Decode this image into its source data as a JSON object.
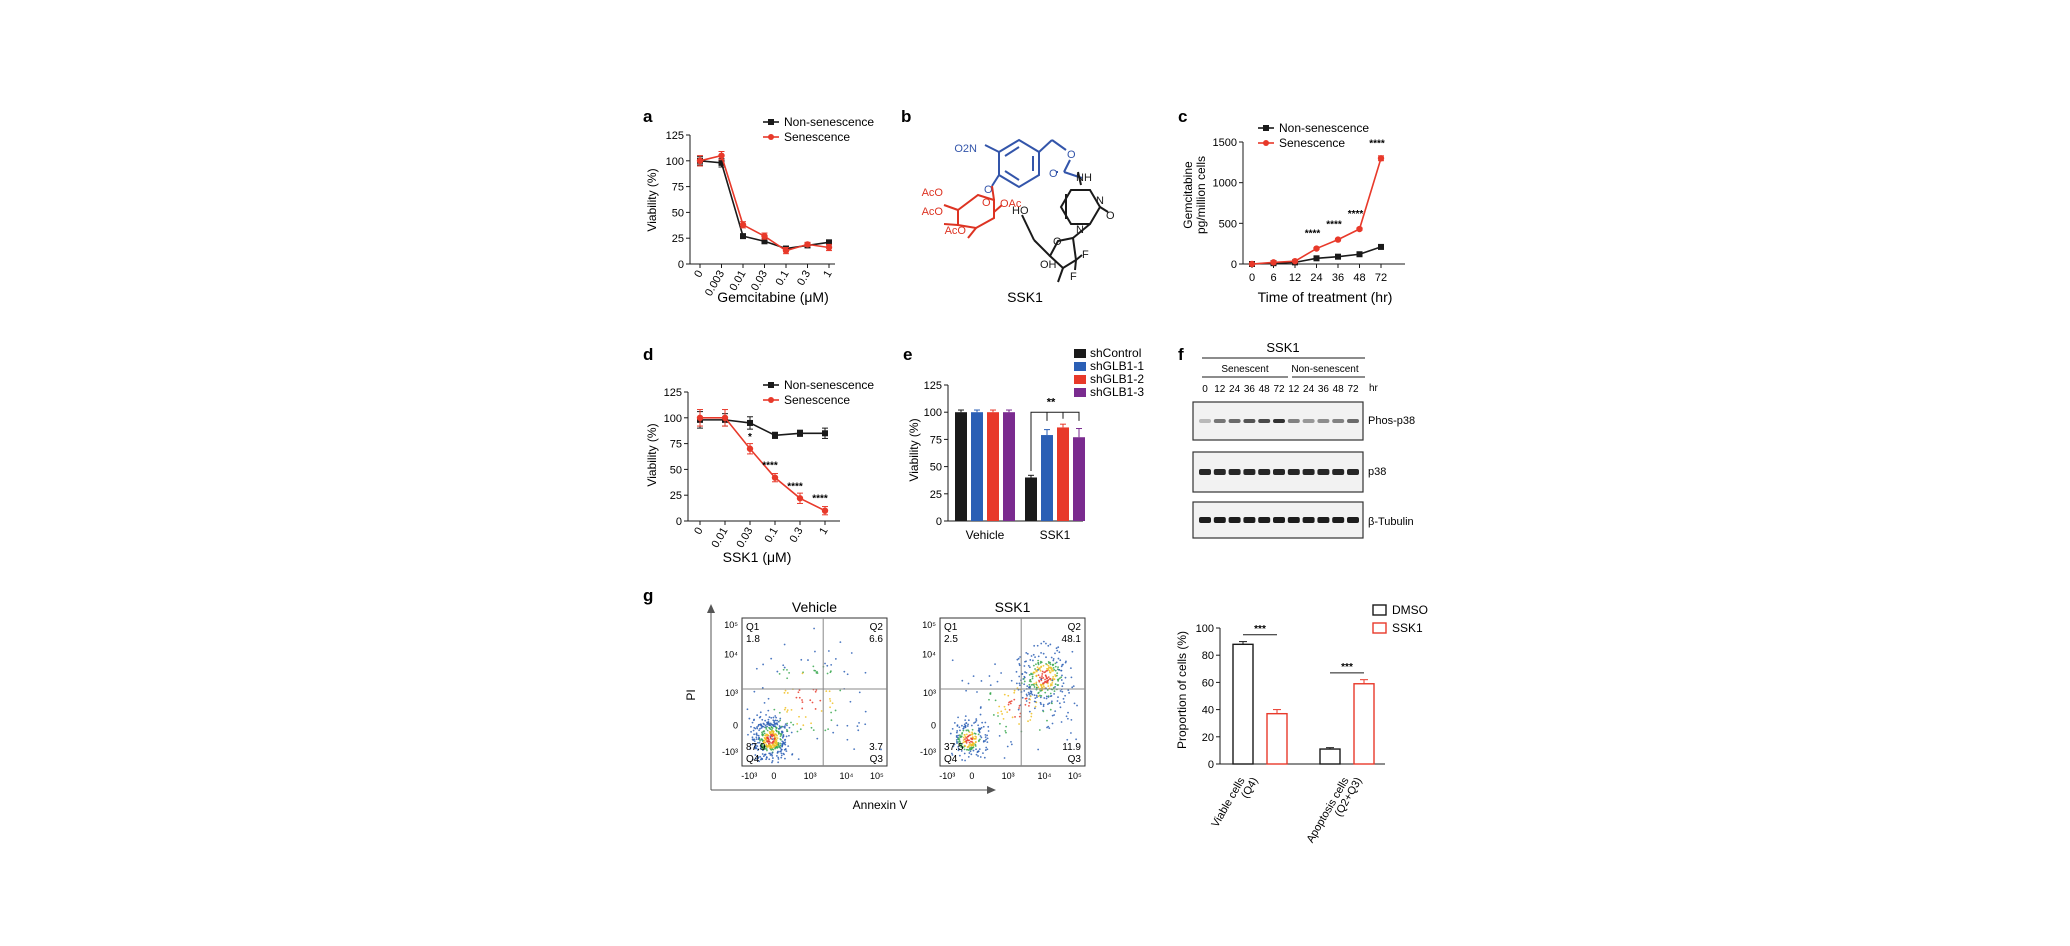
{
  "panels": {
    "a": {
      "letter": "a",
      "ylabel": "Viability (%)",
      "xlabel": "Gemcitabine (μM)",
      "yticks": [
        "0",
        "25",
        "50",
        "75",
        "100",
        "125"
      ],
      "xticks": [
        "0",
        "0.003",
        "0.01",
        "0.03",
        "0.1",
        "0.3",
        "1"
      ],
      "legend": [
        "Non-senescence",
        "Senescence"
      ]
    },
    "b": {
      "letter": "b",
      "compound_name": "SSK1",
      "atom_labels": [
        "O2N",
        "O",
        "O",
        "O",
        "NH",
        "N",
        "N",
        "O",
        "O",
        "OH",
        "F",
        "F",
        "HO",
        "O",
        "OAc",
        "AcO",
        "AcO",
        "AcO"
      ]
    },
    "c": {
      "letter": "c",
      "ylabel_line1": "Gemcitabine",
      "ylabel_line2": "pg/million cells",
      "xlabel": "Time of treatment (hr)",
      "yticks": [
        "0",
        "500",
        "1000",
        "1500"
      ],
      "xticks": [
        "0",
        "6",
        "12",
        "24",
        "36",
        "48",
        "72"
      ],
      "legend": [
        "Non-senescence",
        "Senescence"
      ],
      "sig": [
        "****",
        "****",
        "****",
        "****"
      ]
    },
    "d": {
      "letter": "d",
      "ylabel": "Viability (%)",
      "xlabel": "SSK1 (μM)",
      "yticks": [
        "0",
        "25",
        "50",
        "75",
        "100",
        "125"
      ],
      "xticks": [
        "0",
        "0.01",
        "0.03",
        "0.1",
        "0.3",
        "1"
      ],
      "legend": [
        "Non-senescence",
        "Senescence"
      ],
      "sig": [
        "*",
        "****",
        "****",
        "****"
      ]
    },
    "e": {
      "letter": "e",
      "ylabel": "Viability (%)",
      "yticks": [
        "0",
        "25",
        "50",
        "75",
        "100",
        "125"
      ],
      "groups": [
        "Vehicle",
        "SSK1"
      ],
      "legend": [
        "shControl",
        "shGLB1-1",
        "shGLB1-2",
        "shGLB1-3"
      ],
      "sig": "**"
    },
    "f": {
      "letter": "f",
      "title": "SSK1",
      "group_labels": [
        "Senescent",
        "Non-senescent"
      ],
      "lanes": [
        "0",
        "12",
        "24",
        "36",
        "48",
        "72",
        "12",
        "24",
        "36",
        "48",
        "72"
      ],
      "unit": "hr",
      "blots": [
        "Phos-p38",
        "p38",
        "β-Tubulin"
      ]
    },
    "g": {
      "letter": "g",
      "flow": [
        {
          "title": "Vehicle",
          "q1": "1.8",
          "q2": "6.6",
          "q3": "3.7",
          "q4": "87.9"
        },
        {
          "title": "SSK1",
          "q1": "2.5",
          "q2": "48.1",
          "q3": "11.9",
          "q4": "37.5"
        }
      ],
      "quadrant_names": [
        "Q1",
        "Q2",
        "Q3",
        "Q4"
      ],
      "flow_yticks": [
        "10⁵",
        "10⁴",
        "10³",
        "0",
        "-10³"
      ],
      "flow_xticks": [
        "-10³",
        "0",
        "10³",
        "10⁴",
        "10⁵"
      ],
      "flow_ylabel": "PI",
      "flow_xlabel": "Annexin V",
      "bar_ylabel": "Proportion of cells (%)",
      "bar_yticks": [
        "0",
        "20",
        "40",
        "60",
        "80",
        "100"
      ],
      "bar_categories": [
        "Viable cells",
        "(Q4)",
        "Apoptosis cells",
        "(Q2+Q3)"
      ],
      "legend": [
        "DMSO",
        "SSK1"
      ],
      "sig": [
        "***",
        "***"
      ]
    }
  },
  "colors": {
    "black": "#1a1a1a",
    "red": "#e8392a",
    "blue": "#2b5fb5",
    "purple": "#7a2b8f",
    "chem_blue": "#3355aa",
    "chem_red": "#dd3322"
  },
  "chart_data": [
    {
      "panel": "a",
      "type": "line",
      "title": "",
      "xlabel": "Gemcitabine (μM)",
      "ylabel": "Viability (%)",
      "categories": [
        "0",
        "0.003",
        "0.01",
        "0.03",
        "0.1",
        "0.3",
        "1"
      ],
      "ylim": [
        0,
        125
      ],
      "series": [
        {
          "name": "Non-senescence",
          "color": "#1a1a1a",
          "values": [
            100,
            98,
            27,
            22,
            15,
            18,
            21
          ],
          "errors": [
            4,
            4,
            2,
            2,
            2,
            2,
            2
          ]
        },
        {
          "name": "Senescence",
          "color": "#e8392a",
          "values": [
            100,
            105,
            38,
            27,
            13,
            19,
            16
          ],
          "errors": [
            5,
            4,
            3,
            3,
            3,
            2,
            3
          ]
        }
      ]
    },
    {
      "panel": "c",
      "type": "line",
      "title": "",
      "xlabel": "Time of treatment (hr)",
      "ylabel": "Gemcitabine pg/million cells",
      "x": [
        0,
        6,
        12,
        24,
        36,
        48,
        72
      ],
      "ylim": [
        0,
        1500
      ],
      "series": [
        {
          "name": "Non-senescence",
          "color": "#1a1a1a",
          "values": [
            0,
            10,
            20,
            70,
            90,
            120,
            210
          ],
          "errors": [
            5,
            5,
            5,
            8,
            8,
            10,
            15
          ]
        },
        {
          "name": "Senescence",
          "color": "#e8392a",
          "values": [
            0,
            20,
            35,
            190,
            300,
            430,
            1300
          ],
          "errors": [
            5,
            5,
            6,
            12,
            15,
            15,
            30
          ]
        }
      ]
    },
    {
      "panel": "d",
      "type": "line",
      "title": "",
      "xlabel": "SSK1 (μM)",
      "ylabel": "Viability (%)",
      "categories": [
        "0",
        "0.01",
        "0.03",
        "0.1",
        "0.3",
        "1"
      ],
      "ylim": [
        0,
        125
      ],
      "series": [
        {
          "name": "Non-senescence",
          "color": "#1a1a1a",
          "values": [
            98,
            98,
            95,
            83,
            85,
            85
          ],
          "errors": [
            8,
            6,
            6,
            3,
            3,
            5
          ]
        },
        {
          "name": "Senescence",
          "color": "#e8392a",
          "values": [
            100,
            100,
            70,
            42,
            22,
            10
          ],
          "errors": [
            8,
            8,
            5,
            4,
            5,
            4
          ]
        }
      ]
    },
    {
      "panel": "e",
      "type": "bar",
      "title": "",
      "xlabel": "",
      "ylabel": "Viability (%)",
      "categories": [
        "Vehicle",
        "SSK1"
      ],
      "ylim": [
        0,
        125
      ],
      "series": [
        {
          "name": "shControl",
          "color": "#1a1a1a",
          "values": [
            100,
            40
          ],
          "errors": [
            2,
            2
          ]
        },
        {
          "name": "shGLB1-1",
          "color": "#2b5fb5",
          "values": [
            100,
            79
          ],
          "errors": [
            2,
            5
          ]
        },
        {
          "name": "shGLB1-2",
          "color": "#e8392a",
          "values": [
            100,
            86
          ],
          "errors": [
            2,
            3
          ]
        },
        {
          "name": "shGLB1-3",
          "color": "#7a2b8f",
          "values": [
            100,
            77
          ],
          "errors": [
            2,
            8
          ]
        }
      ]
    },
    {
      "panel": "g",
      "type": "bar",
      "title": "",
      "xlabel": "",
      "ylabel": "Proportion of cells (%)",
      "categories": [
        "Viable cells (Q4)",
        "Apoptosis cells (Q2+Q3)"
      ],
      "ylim": [
        0,
        100
      ],
      "series": [
        {
          "name": "DMSO",
          "color": "#1a1a1a",
          "values": [
            88,
            11
          ],
          "errors": [
            2,
            1
          ]
        },
        {
          "name": "SSK1",
          "color": "#e8392a",
          "values": [
            37,
            59
          ],
          "errors": [
            3,
            3
          ]
        }
      ]
    }
  ]
}
